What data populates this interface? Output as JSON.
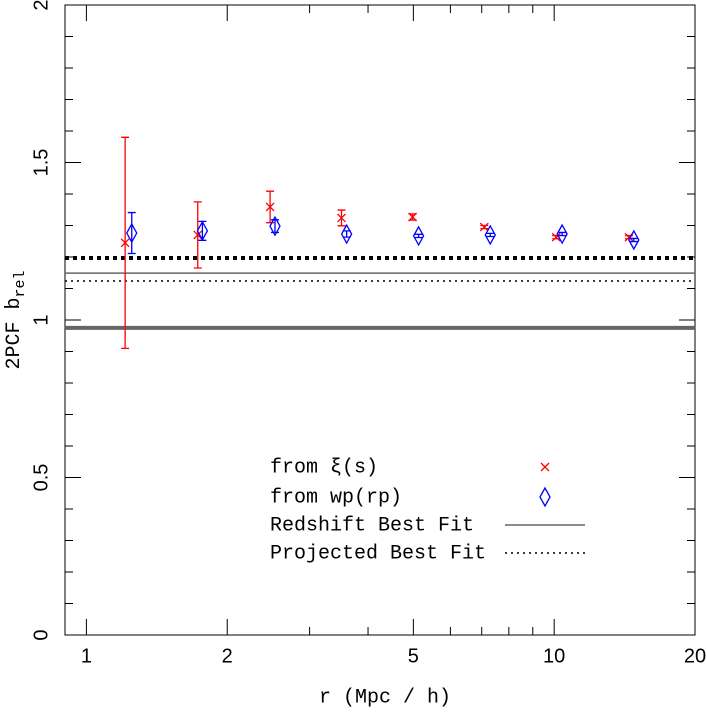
{
  "chart_data": {
    "type": "scatter",
    "x_label": "r (Mpc / h)",
    "y_label": "2PCF b",
    "y_label_sub": "rel",
    "log_x": true,
    "xlim": [
      0.9,
      20
    ],
    "xticks": [
      1,
      2,
      5,
      10,
      20
    ],
    "xminor": [
      3,
      4,
      6,
      7,
      8,
      9
    ],
    "ylim": [
      0,
      2
    ],
    "yticks": [
      0,
      0.5,
      1,
      1.5,
      2
    ],
    "yminor": [
      0.1,
      0.2,
      0.3,
      0.4,
      0.6,
      0.7,
      0.8,
      0.9,
      1.1,
      1.2,
      1.3,
      1.4,
      1.6,
      1.7,
      1.8,
      1.9
    ],
    "series": [
      {
        "name": "from ξ(s)",
        "color": "#ff0000",
        "marker": "x",
        "x": [
          1.21,
          1.73,
          2.47,
          3.51,
          4.98,
          7.09,
          10.1,
          14.45
        ],
        "values": [
          1.245,
          1.27,
          1.359,
          1.324,
          1.327,
          1.295,
          1.263,
          1.263
        ],
        "errors": [
          0.335,
          0.105,
          0.05,
          0.025,
          0.01,
          0.005,
          0.005,
          0.005
        ]
      },
      {
        "name": "from wp(rp)",
        "color": "#0000ff",
        "marker": "diamond",
        "x": [
          1.25,
          1.77,
          2.53,
          3.6,
          5.13,
          7.3,
          10.4,
          14.8
        ],
        "values": [
          1.276,
          1.283,
          1.298,
          1.273,
          1.267,
          1.27,
          1.273,
          1.254
        ],
        "errors": [
          0.065,
          0.03,
          0.02,
          0.01,
          0.005,
          0.005,
          0.005,
          0.005
        ]
      }
    ],
    "hlines": [
      {
        "name": "Redshift Best Fit",
        "color": "#666666",
        "style": "solid",
        "values": [
          0.975,
          1.149
        ]
      },
      {
        "name": "Projected Best Fit",
        "color": "#000000",
        "style": "dotted",
        "values": [
          1.197,
          1.124
        ]
      }
    ]
  }
}
